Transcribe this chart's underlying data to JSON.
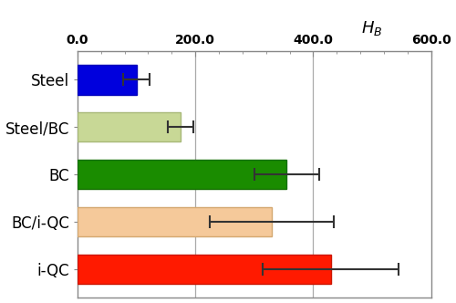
{
  "categories": [
    "i-QC",
    "BC/i-QC",
    "BC",
    "Steel/BC",
    "Steel"
  ],
  "values": [
    430,
    330,
    355,
    175,
    100
  ],
  "errors": [
    115,
    105,
    55,
    22,
    22
  ],
  "bar_colors": [
    "#ff1a00",
    "#f5c99a",
    "#1a8c00",
    "#c8d896",
    "#0000dd"
  ],
  "bar_edge_colors": [
    "#cc1500",
    "#d4a870",
    "#147000",
    "#a8b878",
    "#0000bb"
  ],
  "xlim": [
    0,
    600
  ],
  "xticks": [
    0.0,
    200.0,
    400.0,
    600.0
  ],
  "figsize": [
    5.0,
    3.32
  ],
  "dpi": 100,
  "bar_height": 0.62,
  "background_color": "#ffffff",
  "grid_color": "#aaaaaa",
  "errorbar_color": "#333333",
  "errorbar_linewidth": 1.5,
  "errorbar_capsize": 5,
  "label_fontsize": 12,
  "tick_fontsize": 10,
  "spine_color": "#888888"
}
